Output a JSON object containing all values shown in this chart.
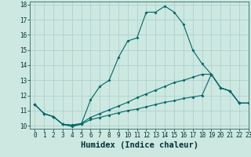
{
  "xlabel": "Humidex (Indice chaleur)",
  "background_color": "#cce8e0",
  "grid_color": "#aacccc",
  "line_color": "#006666",
  "xlim": [
    -0.5,
    23
  ],
  "ylim": [
    9.8,
    18.2
  ],
  "xticks": [
    0,
    1,
    2,
    3,
    4,
    5,
    6,
    7,
    8,
    9,
    10,
    11,
    12,
    13,
    14,
    15,
    16,
    17,
    18,
    19,
    20,
    21,
    22,
    23
  ],
  "yticks": [
    10,
    11,
    12,
    13,
    14,
    15,
    16,
    17,
    18
  ],
  "line1_x": [
    0,
    1,
    2,
    3,
    4,
    5,
    6,
    7,
    8,
    9,
    10,
    11,
    12,
    13,
    14,
    15,
    16,
    17,
    18,
    19,
    20,
    21,
    22
  ],
  "line1_y": [
    11.4,
    10.8,
    10.6,
    10.1,
    9.95,
    10.1,
    11.7,
    12.6,
    13.0,
    14.5,
    15.6,
    15.8,
    17.5,
    17.5,
    17.9,
    17.5,
    16.7,
    15.0,
    14.1,
    13.4,
    12.5,
    12.3,
    11.5
  ],
  "line2_x": [
    0,
    1,
    2,
    3,
    4,
    5,
    6,
    7,
    8,
    9,
    10,
    11,
    12,
    13,
    14,
    15,
    16,
    17,
    18,
    19,
    20,
    21,
    22,
    23
  ],
  "line2_y": [
    11.4,
    10.8,
    10.6,
    10.1,
    10.05,
    10.15,
    10.55,
    10.8,
    11.05,
    11.3,
    11.55,
    11.85,
    12.1,
    12.35,
    12.6,
    12.85,
    13.0,
    13.2,
    13.4,
    13.4,
    12.5,
    12.3,
    11.5,
    11.5
  ],
  "line3_x": [
    0,
    1,
    2,
    3,
    4,
    5,
    6,
    7,
    8,
    9,
    10,
    11,
    12,
    13,
    14,
    15,
    16,
    17,
    18,
    19,
    20,
    21,
    22,
    23
  ],
  "line3_y": [
    11.4,
    10.8,
    10.6,
    10.1,
    10.0,
    10.1,
    10.4,
    10.55,
    10.7,
    10.85,
    11.0,
    11.1,
    11.25,
    11.4,
    11.55,
    11.65,
    11.8,
    11.9,
    12.0,
    13.4,
    12.5,
    12.3,
    11.5,
    11.5
  ],
  "marker": "D",
  "markersize": 2.0,
  "linewidth": 0.8,
  "tick_fontsize": 5.5,
  "xlabel_fontsize": 7.5
}
